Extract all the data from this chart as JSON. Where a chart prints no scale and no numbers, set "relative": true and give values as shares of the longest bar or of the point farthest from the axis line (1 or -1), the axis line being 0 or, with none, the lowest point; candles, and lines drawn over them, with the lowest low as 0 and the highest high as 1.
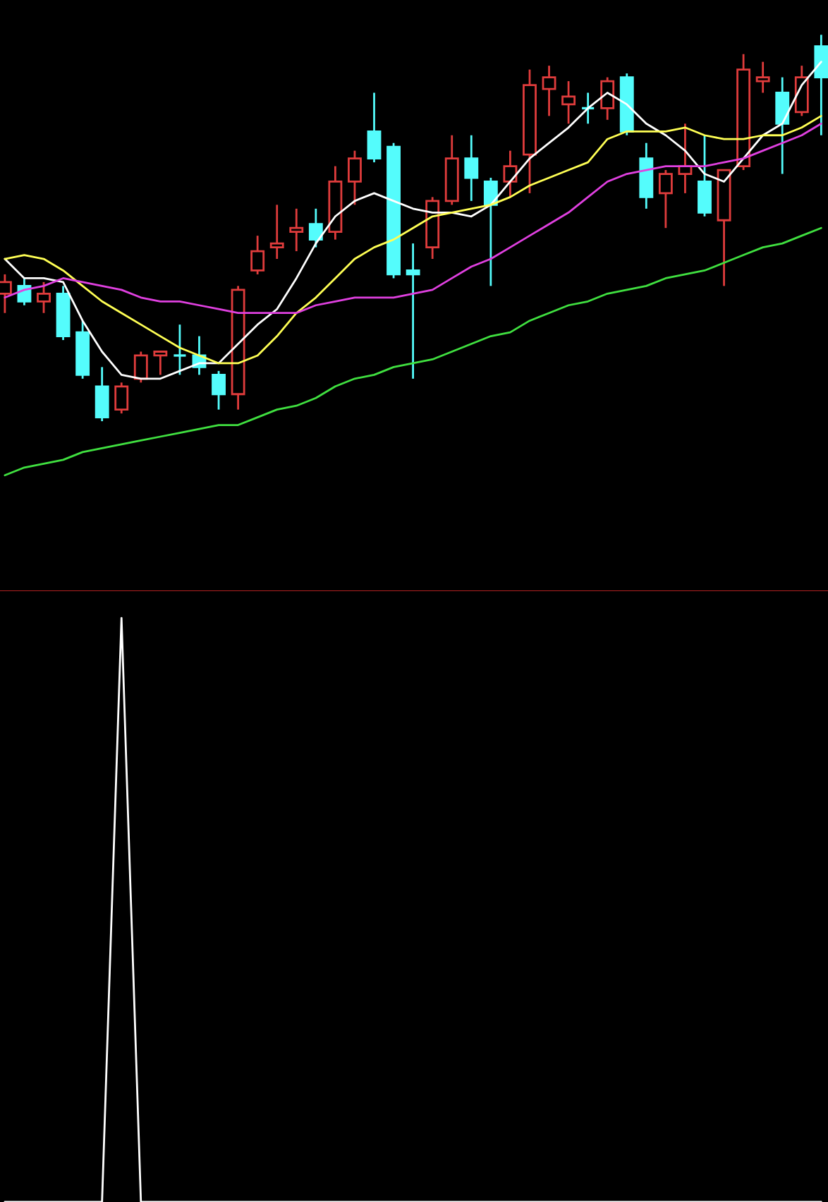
{
  "chart_data": [
    {
      "type": "candlestick",
      "relative": true,
      "categories": [
        null,
        null,
        null,
        null,
        null,
        null,
        null,
        null,
        null,
        null,
        null,
        null,
        null,
        null,
        null,
        null,
        null,
        null,
        null,
        null,
        null,
        null,
        null,
        null,
        null,
        null,
        null,
        null,
        null,
        null,
        null,
        null,
        null,
        null,
        null,
        null,
        null,
        null,
        null,
        null,
        null,
        null,
        null
      ],
      "ohlc": [
        [
          0.33,
          0.38,
          0.28,
          0.36
        ],
        [
          0.35,
          0.37,
          0.3,
          0.31
        ],
        [
          0.31,
          0.36,
          0.28,
          0.33
        ],
        [
          0.33,
          0.35,
          0.21,
          0.22
        ],
        [
          0.23,
          0.26,
          0.11,
          0.12
        ],
        [
          0.09,
          0.14,
          0.0,
          0.01
        ],
        [
          0.03,
          0.1,
          0.02,
          0.09
        ],
        [
          0.11,
          0.18,
          0.1,
          0.17
        ],
        [
          0.17,
          0.18,
          0.12,
          0.18
        ],
        [
          0.17,
          0.25,
          0.12,
          0.17
        ],
        [
          0.17,
          0.22,
          0.12,
          0.14
        ],
        [
          0.12,
          0.13,
          0.03,
          0.07
        ],
        [
          0.07,
          0.35,
          0.03,
          0.34
        ],
        [
          0.39,
          0.48,
          0.38,
          0.44
        ],
        [
          0.45,
          0.56,
          0.42,
          0.46
        ],
        [
          0.49,
          0.55,
          0.44,
          0.5
        ],
        [
          0.51,
          0.55,
          0.45,
          0.47
        ],
        [
          0.49,
          0.66,
          0.47,
          0.62
        ],
        [
          0.62,
          0.7,
          0.56,
          0.68
        ],
        [
          0.75,
          0.85,
          0.67,
          0.68
        ],
        [
          0.71,
          0.72,
          0.37,
          0.38
        ],
        [
          0.39,
          0.46,
          0.11,
          0.38
        ],
        [
          0.45,
          0.58,
          0.42,
          0.57
        ],
        [
          0.57,
          0.74,
          0.56,
          0.68
        ],
        [
          0.68,
          0.74,
          0.57,
          0.63
        ],
        [
          0.62,
          0.63,
          0.35,
          0.56
        ],
        [
          0.62,
          0.7,
          0.58,
          0.66
        ],
        [
          0.69,
          0.91,
          0.59,
          0.87
        ],
        [
          0.86,
          0.92,
          0.79,
          0.89
        ],
        [
          0.82,
          0.88,
          0.77,
          0.84
        ],
        [
          0.81,
          0.85,
          0.77,
          0.81
        ],
        [
          0.81,
          0.89,
          0.78,
          0.88
        ],
        [
          0.89,
          0.9,
          0.74,
          0.75
        ],
        [
          0.68,
          0.72,
          0.55,
          0.58
        ],
        [
          0.59,
          0.65,
          0.5,
          0.64
        ],
        [
          0.64,
          0.77,
          0.59,
          0.66
        ],
        [
          0.62,
          0.74,
          0.53,
          0.54
        ],
        [
          0.52,
          0.65,
          0.35,
          0.65
        ],
        [
          0.66,
          0.95,
          0.65,
          0.91
        ],
        [
          0.88,
          0.93,
          0.85,
          0.89
        ],
        [
          0.85,
          0.89,
          0.64,
          0.77
        ],
        [
          0.8,
          0.92,
          0.79,
          0.89
        ],
        [
          0.97,
          1.0,
          0.74,
          0.89
        ]
      ],
      "series": [
        {
          "type": "line",
          "color": "#ffffff",
          "values": [
            0.42,
            0.37,
            0.37,
            0.36,
            0.26,
            0.18,
            0.12,
            0.11,
            0.11,
            0.13,
            0.15,
            0.15,
            0.2,
            0.25,
            0.29,
            0.37,
            0.46,
            0.53,
            0.57,
            0.59,
            0.57,
            0.55,
            0.54,
            0.54,
            0.53,
            0.56,
            0.62,
            0.68,
            0.72,
            0.76,
            0.81,
            0.85,
            0.82,
            0.77,
            0.74,
            0.7,
            0.64,
            0.62,
            0.68,
            0.74,
            0.77,
            0.87,
            0.93
          ]
        },
        {
          "type": "line",
          "color": "#ffff54",
          "values": [
            0.42,
            0.43,
            0.42,
            0.39,
            0.35,
            0.31,
            0.28,
            0.25,
            0.22,
            0.19,
            0.17,
            0.15,
            0.15,
            0.17,
            0.22,
            0.28,
            0.32,
            0.37,
            0.42,
            0.45,
            0.47,
            0.5,
            0.53,
            0.54,
            0.55,
            0.56,
            0.58,
            0.61,
            0.63,
            0.65,
            0.67,
            0.73,
            0.75,
            0.75,
            0.75,
            0.76,
            0.74,
            0.73,
            0.73,
            0.74,
            0.74,
            0.76,
            0.79
          ]
        },
        {
          "type": "line",
          "color": "#e040e0",
          "values": [
            0.32,
            0.34,
            0.35,
            0.37,
            0.36,
            0.35,
            0.34,
            0.32,
            0.31,
            0.31,
            0.3,
            0.29,
            0.28,
            0.28,
            0.28,
            0.28,
            0.3,
            0.31,
            0.32,
            0.32,
            0.32,
            0.33,
            0.34,
            0.37,
            0.4,
            0.42,
            0.45,
            0.48,
            0.51,
            0.54,
            0.58,
            0.62,
            0.64,
            0.65,
            0.66,
            0.66,
            0.66,
            0.67,
            0.68,
            0.7,
            0.72,
            0.74,
            0.77
          ]
        },
        {
          "type": "line",
          "color": "#40e040",
          "values": [
            -0.14,
            -0.12,
            -0.11,
            -0.1,
            -0.08,
            -0.07,
            -0.06,
            -0.05,
            -0.04,
            -0.03,
            -0.02,
            -0.01,
            -0.01,
            0.01,
            0.03,
            0.04,
            0.06,
            0.09,
            0.11,
            0.12,
            0.14,
            0.15,
            0.16,
            0.18,
            0.2,
            0.22,
            0.23,
            0.26,
            0.28,
            0.3,
            0.31,
            0.33,
            0.34,
            0.35,
            0.37,
            0.38,
            0.39,
            0.41,
            0.43,
            0.45,
            0.46,
            0.48,
            0.5
          ]
        }
      ]
    },
    {
      "type": "line",
      "relative": true,
      "categories": [
        null,
        null,
        null,
        null,
        null,
        null,
        null,
        null,
        null,
        null,
        null,
        null,
        null,
        null,
        null,
        null,
        null,
        null,
        null,
        null,
        null,
        null,
        null,
        null,
        null,
        null,
        null,
        null,
        null,
        null,
        null,
        null,
        null,
        null,
        null,
        null,
        null,
        null,
        null,
        null,
        null,
        null,
        null
      ],
      "series": [
        {
          "color": "#ffffff",
          "values": [
            0,
            0,
            0,
            0,
            0,
            0,
            1,
            0,
            0,
            0,
            0,
            0,
            0,
            0,
            0,
            0,
            0,
            0,
            0,
            0,
            0,
            0,
            0,
            0,
            0,
            0,
            0,
            0,
            0,
            0,
            0,
            0,
            0,
            0,
            0,
            0,
            0,
            0,
            0,
            0,
            0,
            0,
            0
          ]
        }
      ]
    }
  ]
}
